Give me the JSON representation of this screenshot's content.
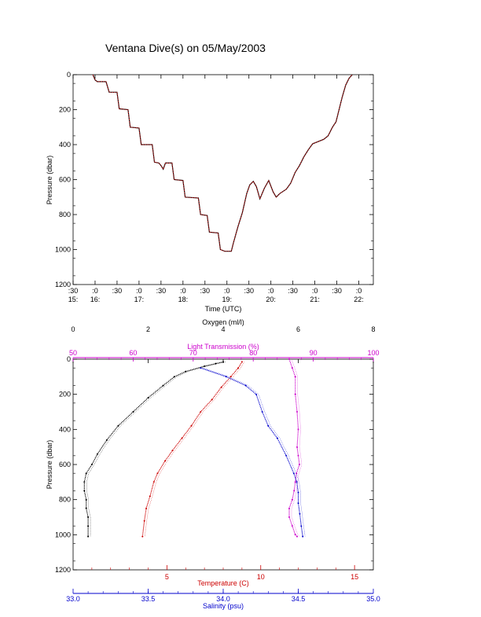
{
  "title": "Ventana Dive(s) on 05/May/2003",
  "chart_data": [
    {
      "type": "line",
      "xlabel": "Time (UTC)",
      "ylabel": "Pressure (dbar)",
      "x_unit": "decimal hours UTC",
      "xlim": [
        15.5,
        22.33
      ],
      "ylim": [
        1200,
        0
      ],
      "x_ticks": [
        {
          "v": 15.5,
          "top": ":30",
          "bot": "15:"
        },
        {
          "v": 16.0,
          "top": ":0",
          "bot": "16:"
        },
        {
          "v": 16.5,
          "top": ":30",
          "bot": ""
        },
        {
          "v": 17.0,
          "top": ":0",
          "bot": "17:"
        },
        {
          "v": 17.5,
          "top": ":30",
          "bot": ""
        },
        {
          "v": 18.0,
          "top": ":0",
          "bot": "18:"
        },
        {
          "v": 18.5,
          "top": ":30",
          "bot": ""
        },
        {
          "v": 19.0,
          "top": ":0",
          "bot": "19:"
        },
        {
          "v": 19.5,
          "top": ":30",
          "bot": ""
        },
        {
          "v": 20.0,
          "top": ":0",
          "bot": "20:"
        },
        {
          "v": 20.5,
          "top": ":30",
          "bot": ""
        },
        {
          "v": 21.0,
          "top": ":0",
          "bot": "21:"
        },
        {
          "v": 21.5,
          "top": ":30",
          "bot": ""
        },
        {
          "v": 22.0,
          "top": ":0",
          "bot": "22:"
        }
      ],
      "y_ticks": [
        0,
        200,
        400,
        600,
        800,
        1000,
        1200
      ],
      "series": [
        {
          "color": "#000000",
          "points": [
            [
              15.95,
              0
            ],
            [
              16.0,
              30
            ],
            [
              16.05,
              40
            ],
            [
              16.25,
              40
            ],
            [
              16.32,
              100
            ],
            [
              16.5,
              100
            ],
            [
              16.55,
              195
            ],
            [
              16.75,
              200
            ],
            [
              16.8,
              300
            ],
            [
              17.0,
              305
            ],
            [
              17.05,
              400
            ],
            [
              17.3,
              400
            ],
            [
              17.35,
              500
            ],
            [
              17.45,
              505
            ],
            [
              17.5,
              520
            ],
            [
              17.55,
              540
            ],
            [
              17.6,
              505
            ],
            [
              17.75,
              505
            ],
            [
              17.8,
              600
            ],
            [
              18.0,
              605
            ],
            [
              18.05,
              700
            ],
            [
              18.35,
              705
            ],
            [
              18.4,
              800
            ],
            [
              18.55,
              805
            ],
            [
              18.6,
              900
            ],
            [
              18.8,
              905
            ],
            [
              18.85,
              1000
            ],
            [
              18.95,
              1010
            ],
            [
              19.1,
              1010
            ],
            [
              19.15,
              960
            ],
            [
              19.25,
              870
            ],
            [
              19.35,
              790
            ],
            [
              19.45,
              680
            ],
            [
              19.52,
              630
            ],
            [
              19.6,
              610
            ],
            [
              19.67,
              640
            ],
            [
              19.75,
              710
            ],
            [
              19.85,
              650
            ],
            [
              19.95,
              605
            ],
            [
              20.05,
              670
            ],
            [
              20.12,
              700
            ],
            [
              20.2,
              680
            ],
            [
              20.35,
              655
            ],
            [
              20.45,
              620
            ],
            [
              20.55,
              560
            ],
            [
              20.65,
              520
            ],
            [
              20.75,
              470
            ],
            [
              20.85,
              430
            ],
            [
              20.95,
              395
            ],
            [
              21.05,
              385
            ],
            [
              21.2,
              370
            ],
            [
              21.3,
              350
            ],
            [
              21.4,
              300
            ],
            [
              21.48,
              270
            ],
            [
              21.55,
              200
            ],
            [
              21.62,
              130
            ],
            [
              21.7,
              60
            ],
            [
              21.78,
              20
            ],
            [
              21.85,
              0
            ]
          ]
        },
        {
          "color": "#e01010",
          "points": [
            [
              15.95,
              0
            ],
            [
              16.0,
              30
            ],
            [
              16.05,
              40
            ],
            [
              16.25,
              40
            ],
            [
              16.32,
              100
            ],
            [
              16.5,
              100
            ],
            [
              16.55,
              195
            ],
            [
              16.75,
              200
            ],
            [
              16.8,
              300
            ],
            [
              17.0,
              305
            ],
            [
              17.05,
              400
            ],
            [
              17.3,
              400
            ],
            [
              17.35,
              500
            ],
            [
              17.45,
              505
            ],
            [
              17.5,
              520
            ],
            [
              17.55,
              540
            ],
            [
              17.6,
              505
            ],
            [
              17.75,
              505
            ],
            [
              17.8,
              600
            ],
            [
              18.0,
              605
            ],
            [
              18.05,
              700
            ],
            [
              18.35,
              705
            ],
            [
              18.4,
              800
            ],
            [
              18.55,
              805
            ],
            [
              18.6,
              900
            ],
            [
              18.8,
              905
            ],
            [
              18.85,
              1000
            ],
            [
              18.95,
              1010
            ],
            [
              19.1,
              1010
            ],
            [
              19.15,
              960
            ],
            [
              19.25,
              870
            ],
            [
              19.35,
              790
            ],
            [
              19.45,
              680
            ],
            [
              19.52,
              630
            ],
            [
              19.6,
              610
            ],
            [
              19.67,
              640
            ],
            [
              19.75,
              710
            ],
            [
              19.85,
              650
            ],
            [
              19.95,
              605
            ],
            [
              20.05,
              670
            ],
            [
              20.12,
              700
            ],
            [
              20.2,
              680
            ],
            [
              20.35,
              655
            ],
            [
              20.45,
              620
            ],
            [
              20.55,
              560
            ],
            [
              20.65,
              520
            ],
            [
              20.75,
              470
            ],
            [
              20.85,
              430
            ],
            [
              20.95,
              395
            ],
            [
              21.05,
              385
            ],
            [
              21.2,
              370
            ],
            [
              21.3,
              350
            ],
            [
              21.4,
              300
            ],
            [
              21.48,
              270
            ],
            [
              21.55,
              200
            ],
            [
              21.62,
              130
            ],
            [
              21.7,
              60
            ],
            [
              21.78,
              20
            ],
            [
              21.85,
              0
            ]
          ]
        }
      ]
    },
    {
      "type": "scatter",
      "ylabel": "Pressure (dbar)",
      "ylim": [
        1200,
        0
      ],
      "y_ticks": [
        0,
        200,
        400,
        600,
        800,
        1000,
        1200
      ],
      "axes": {
        "oxygen": {
          "label": "Oxygen (ml/l)",
          "color": "#000000",
          "lim": [
            0,
            8
          ],
          "ticks": [
            0,
            2,
            4,
            6,
            8
          ]
        },
        "light_transmission": {
          "label": "Light Transmission (%)",
          "color": "#cc00cc",
          "lim": [
            50,
            100
          ],
          "ticks": [
            50,
            60,
            70,
            80,
            90,
            100
          ]
        },
        "temperature": {
          "label": "Temperature (C)",
          "color": "#cc0000",
          "lim": [
            0,
            16
          ],
          "ticks": [
            5,
            10,
            15
          ]
        },
        "salinity": {
          "label": "Salinity (psu)",
          "color": "#0000cc",
          "lim": [
            33.0,
            35.0
          ],
          "ticks": [
            "33.0",
            "33.5",
            "34.0",
            "34.5",
            "35.0"
          ]
        }
      },
      "profiles": [
        {
          "variable": "oxygen",
          "color": "#000000",
          "points": [
            [
              4.0,
              15
            ],
            [
              3.8,
              25
            ],
            [
              3.5,
              40
            ],
            [
              3.0,
              70
            ],
            [
              2.7,
              100
            ],
            [
              2.4,
              150
            ],
            [
              2.0,
              220
            ],
            [
              1.6,
              300
            ],
            [
              1.2,
              380
            ],
            [
              0.9,
              460
            ],
            [
              0.65,
              540
            ],
            [
              0.5,
              600
            ],
            [
              0.35,
              650
            ],
            [
              0.3,
              700
            ],
            [
              0.3,
              750
            ],
            [
              0.35,
              800
            ],
            [
              0.35,
              850
            ],
            [
              0.4,
              900
            ],
            [
              0.4,
              950
            ],
            [
              0.4,
              1010
            ]
          ]
        },
        {
          "variable": "light_transmission",
          "color": "#cc00cc",
          "points": [
            [
              86.0,
              0
            ],
            [
              86.5,
              50
            ],
            [
              87.0,
              100
            ],
            [
              87.0,
              200
            ],
            [
              87.3,
              300
            ],
            [
              87.5,
              400
            ],
            [
              87.3,
              500
            ],
            [
              87.5,
              550
            ],
            [
              87.7,
              600
            ],
            [
              87.2,
              650
            ],
            [
              87.0,
              700
            ],
            [
              86.8,
              750
            ],
            [
              86.5,
              800
            ],
            [
              86.0,
              850
            ],
            [
              86.0,
              900
            ],
            [
              86.5,
              950
            ],
            [
              87.0,
              1000
            ],
            [
              87.3,
              1010
            ]
          ]
        },
        {
          "variable": "temperature",
          "color": "#cc0000",
          "points": [
            [
              9.0,
              15
            ],
            [
              8.8,
              50
            ],
            [
              8.4,
              100
            ],
            [
              7.9,
              160
            ],
            [
              7.4,
              230
            ],
            [
              6.8,
              300
            ],
            [
              6.3,
              380
            ],
            [
              5.8,
              450
            ],
            [
              5.3,
              520
            ],
            [
              4.9,
              580
            ],
            [
              4.5,
              650
            ],
            [
              4.3,
              700
            ],
            [
              4.1,
              780
            ],
            [
              3.9,
              850
            ],
            [
              3.8,
              920
            ],
            [
              3.7,
              1010
            ]
          ]
        },
        {
          "variable": "salinity",
          "color": "#0000cc",
          "points": [
            [
              33.85,
              50
            ],
            [
              34.02,
              100
            ],
            [
              34.15,
              150
            ],
            [
              34.22,
              200
            ],
            [
              34.26,
              300
            ],
            [
              34.3,
              380
            ],
            [
              34.36,
              450
            ],
            [
              34.42,
              550
            ],
            [
              34.47,
              650
            ],
            [
              34.49,
              700
            ],
            [
              34.5,
              760
            ],
            [
              34.5,
              820
            ],
            [
              34.51,
              880
            ],
            [
              34.52,
              950
            ],
            [
              34.53,
              1010
            ]
          ]
        }
      ]
    }
  ]
}
